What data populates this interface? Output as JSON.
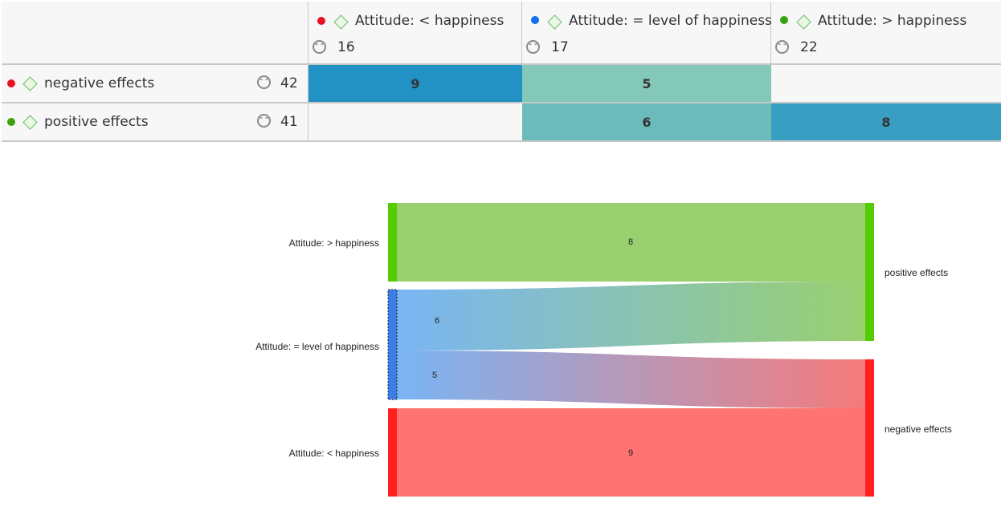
{
  "table": {
    "columns": [
      {
        "label": "Attitude: < happiness",
        "count": "16",
        "dot": "#e81123"
      },
      {
        "label": "Attitude: = level of happiness",
        "count": "17",
        "dot": "#0e6ff0"
      },
      {
        "label": "Attitude: > happiness",
        "count": "22",
        "dot": "#3aa10f"
      }
    ],
    "rows": [
      {
        "label": "negative effects",
        "count": "42",
        "dot": "#e81123",
        "cells": [
          "9",
          "5",
          ""
        ]
      },
      {
        "label": "positive effects",
        "count": "41",
        "dot": "#3aa10f",
        "cells": [
          "",
          "6",
          "8"
        ]
      }
    ],
    "cell_colors": [
      [
        "#2291c3",
        "#83c8b8",
        "#f7f7f7"
      ],
      [
        "#f7f7f7",
        "#6bbbbb",
        "#389fc2"
      ]
    ]
  },
  "sankey": {
    "left_nodes": [
      "Attitude: > happiness",
      "Attitude: = level of happiness",
      "Attitude: < happiness"
    ],
    "right_nodes": [
      "positive effects",
      "negative effects"
    ],
    "flows": [
      {
        "from": "Attitude: > happiness",
        "to": "positive effects",
        "value": "8"
      },
      {
        "from": "Attitude: = level of happiness",
        "to": "positive effects",
        "value": "6"
      },
      {
        "from": "Attitude: = level of happiness",
        "to": "negative effects",
        "value": "5"
      },
      {
        "from": "Attitude: < happiness",
        "to": "negative effects",
        "value": "9"
      }
    ],
    "colors": {
      "green": "#55cc00",
      "blue": "#3d7ee6",
      "red": "#ff2020"
    }
  }
}
